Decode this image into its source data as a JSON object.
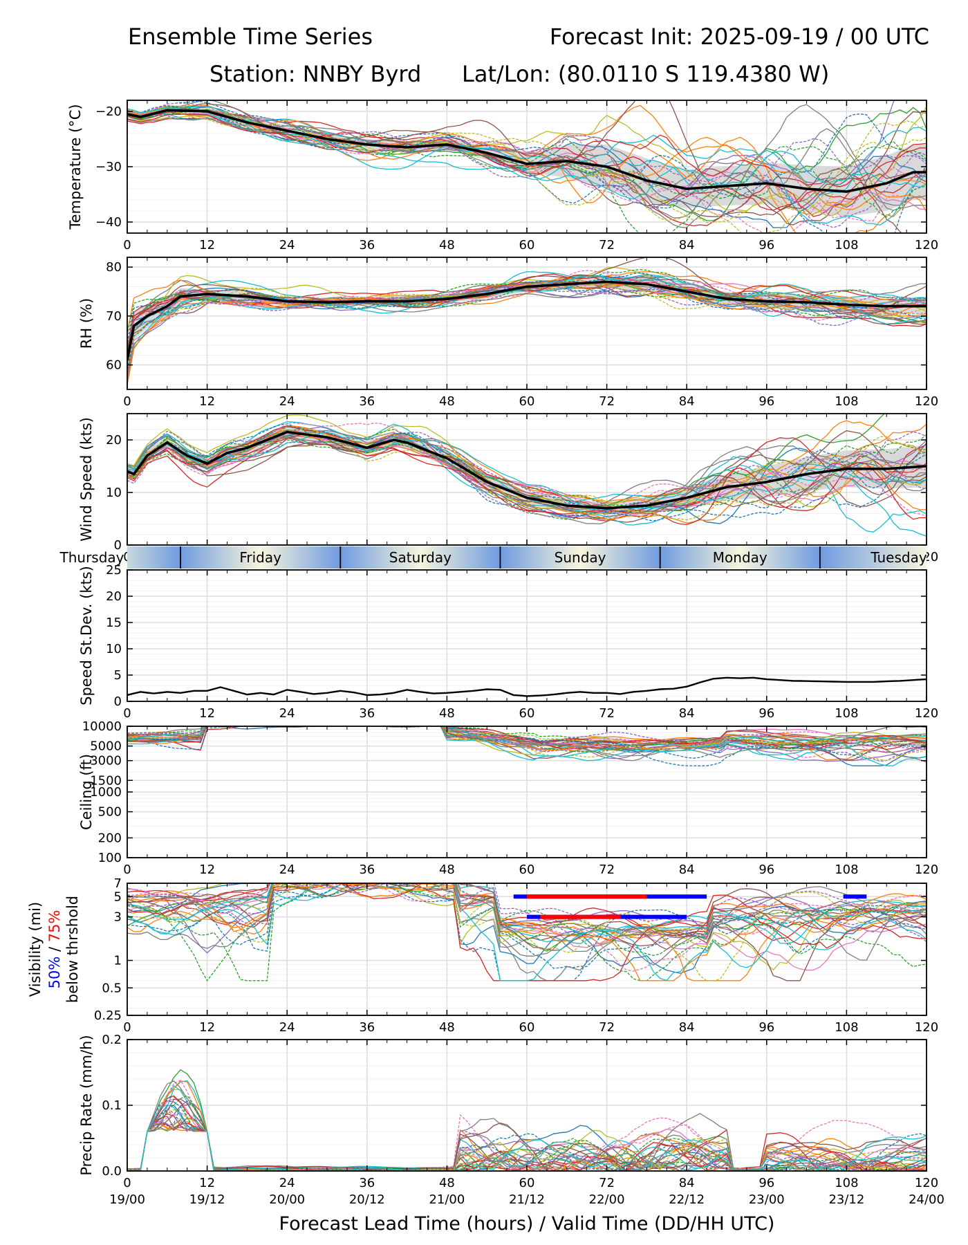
{
  "header": {
    "title_left": "Ensemble Time Series",
    "title_right": "Forecast Init: 2025-09-19 / 00 UTC",
    "station": "Station: NNBY Byrd",
    "latlon": "Lat/Lon: (80.0110 S 119.4380 W)"
  },
  "colors": {
    "ensemble": [
      "#1f77b4",
      "#ff7f0e",
      "#2ca02c",
      "#d62728",
      "#9467bd",
      "#8c564b",
      "#e377c2",
      "#7f7f7f",
      "#bcbd22",
      "#17becf"
    ],
    "mean": "#000000",
    "spread": "#d9d9d9",
    "vis_50": "#0000ff",
    "vis_75": "#ff0000",
    "day_band_blue": "#6f9be0",
    "day_band_cream": "#f7f5dc"
  },
  "chart_data": {
    "x_ticks": [
      0,
      12,
      24,
      36,
      48,
      60,
      72,
      84,
      96,
      108,
      120
    ],
    "xlim": [
      0,
      120
    ],
    "xlabel": "Forecast Lead Time (hours) / Valid Time (DD/HH UTC)",
    "valid_times": [
      "19/00",
      "19/12",
      "20/00",
      "20/12",
      "21/00",
      "21/12",
      "22/00",
      "22/12",
      "23/00",
      "23/12",
      "24/00"
    ],
    "day_bar": {
      "days": [
        "Thursday",
        "Friday",
        "Saturday",
        "Sunday",
        "Monday",
        "Tuesday"
      ],
      "boundaries": [
        8,
        32,
        56,
        80,
        104
      ]
    },
    "panels": [
      {
        "name": "temperature",
        "type": "line",
        "ylabel": "Temperature (°C)",
        "ylim": [
          -42,
          -18
        ],
        "yticks": [
          -40,
          -30,
          -20
        ],
        "ytick_labels": [
          "−40",
          "−30",
          "−20"
        ],
        "members": 30,
        "mean": {
          "x": [
            0,
            2,
            6,
            12,
            18,
            24,
            30,
            36,
            42,
            48,
            54,
            60,
            66,
            72,
            78,
            84,
            90,
            96,
            102,
            108,
            114,
            118,
            120
          ],
          "y": [
            -20.5,
            -21,
            -19.8,
            -20,
            -22,
            -23.5,
            -25,
            -26,
            -26.5,
            -26,
            -27.5,
            -29.5,
            -29,
            -30,
            -32.5,
            -34,
            -33.5,
            -33,
            -34,
            -34.5,
            -33,
            -31,
            -31
          ]
        },
        "spread": {
          "x": [
            0,
            12,
            24,
            36,
            48,
            60,
            66,
            72,
            78,
            84,
            90,
            96,
            102,
            108,
            114,
            120
          ],
          "hw": [
            0.7,
            0.7,
            1,
            1,
            1,
            1.5,
            3,
            4,
            4,
            3.5,
            3.5,
            3.8,
            4.2,
            4.5,
            5,
            5
          ]
        }
      },
      {
        "name": "rh",
        "type": "line",
        "ylabel": "RH (%)",
        "ylim": [
          55,
          82
        ],
        "yticks": [
          60,
          70,
          80
        ],
        "ytick_labels": [
          "60",
          "70",
          "80"
        ],
        "members": 30,
        "mean": {
          "x": [
            0,
            1,
            3,
            6,
            8,
            12,
            18,
            24,
            30,
            36,
            42,
            48,
            54,
            60,
            66,
            72,
            78,
            84,
            90,
            96,
            102,
            108,
            114,
            120
          ],
          "y": [
            61,
            68,
            70,
            72,
            74,
            74.5,
            74,
            73,
            72.8,
            73,
            73,
            73.5,
            74.5,
            76,
            76.5,
            77,
            76.5,
            75,
            73.5,
            73,
            72.8,
            72.3,
            72,
            72
          ]
        },
        "spread": {
          "x": [
            0,
            6,
            12,
            24,
            48,
            72,
            96,
            120
          ],
          "hw": [
            3,
            2,
            1,
            0.8,
            0.8,
            1.2,
            1.5,
            1.5
          ]
        }
      },
      {
        "name": "wind",
        "type": "line",
        "ylabel": "Wind Speed (kts)",
        "ylim": [
          0,
          25
        ],
        "yticks": [
          0,
          10,
          20
        ],
        "ytick_labels": [
          "0",
          "10",
          "20"
        ],
        "members": 30,
        "mean": {
          "x": [
            0,
            1,
            3,
            6,
            9,
            12,
            15,
            18,
            24,
            30,
            36,
            40,
            42,
            48,
            54,
            60,
            66,
            72,
            78,
            84,
            90,
            96,
            102,
            108,
            114,
            120
          ],
          "y": [
            14,
            13.5,
            17,
            19.5,
            17,
            15.5,
            17.5,
            18.5,
            21.5,
            20.5,
            18.5,
            20,
            19.5,
            16.5,
            12,
            9,
            7.5,
            7,
            7.5,
            9,
            11,
            12,
            13.5,
            14.5,
            14.5,
            15
          ]
        },
        "spread": {
          "x": [
            0,
            12,
            24,
            36,
            48,
            60,
            72,
            84,
            96,
            108,
            120
          ],
          "hw": [
            1,
            1.3,
            1.2,
            1.2,
            1.5,
            1.2,
            1.2,
            2,
            3,
            3.5,
            4
          ]
        }
      },
      {
        "name": "speed_stdev",
        "type": "line",
        "ylabel": "Speed St.Dev. (kts)",
        "ylim": [
          0,
          25
        ],
        "yticks": [
          0,
          5,
          10,
          15,
          20,
          25
        ],
        "ytick_labels": [
          "0",
          "5",
          "10",
          "15",
          "20",
          "25"
        ],
        "members": 0,
        "mean": {
          "x": [
            0,
            2,
            4,
            6,
            8,
            10,
            12,
            14,
            16,
            18,
            20,
            22,
            24,
            26,
            28,
            30,
            32,
            34,
            36,
            38,
            40,
            42,
            44,
            46,
            48,
            50,
            52,
            54,
            56,
            58,
            60,
            62,
            64,
            66,
            68,
            70,
            72,
            74,
            76,
            78,
            80,
            82,
            84,
            86,
            88,
            90,
            92,
            94,
            96,
            100,
            104,
            108,
            112,
            116,
            120
          ],
          "y": [
            1.2,
            1.8,
            1.5,
            1.8,
            1.6,
            2,
            2,
            2.7,
            2,
            1.3,
            1.6,
            1.3,
            2.2,
            1.8,
            1.4,
            1.6,
            2,
            1.7,
            1.2,
            1.3,
            1.6,
            2.2,
            1.8,
            1.5,
            1.6,
            1.8,
            2.0,
            2.3,
            2.2,
            1.2,
            1.0,
            1.1,
            1.3,
            1.6,
            1.8,
            1.6,
            1.6,
            1.4,
            1.8,
            2.0,
            2.3,
            2.4,
            2.8,
            3.6,
            4.3,
            4.5,
            4.4,
            4.5,
            4.2,
            3.9,
            3.8,
            3.7,
            3.7,
            3.9,
            4.2
          ]
        },
        "spread": null
      },
      {
        "name": "ceiling",
        "type": "line",
        "scale": "log",
        "ylabel": "Ceiling (ft)",
        "ylim": [
          100,
          10000
        ],
        "yticks": [
          100,
          200,
          500,
          1000,
          1500,
          3000,
          5000,
          10000
        ],
        "ytick_labels": [
          "100",
          "200",
          "500",
          "1000",
          "1500",
          "3000",
          "5000",
          "10000"
        ],
        "members": 30,
        "mean": null,
        "spread": null
      },
      {
        "name": "visibility",
        "type": "line",
        "scale": "log",
        "ylabel": "Visibility (mi)",
        "ylabel_50": "50%",
        "ylabel_sep": " / ",
        "ylabel_75": "75%",
        "ylabel_below": "below thrshold",
        "ylim": [
          0.25,
          7
        ],
        "yticks": [
          0.25,
          0.5,
          1,
          3,
          5,
          7
        ],
        "ytick_labels": [
          "0.25",
          "0.5",
          "1",
          "3",
          "5",
          "7"
        ],
        "members": 30,
        "mean": null,
        "spread": null,
        "threshold_bars": [
          {
            "label": "50%",
            "color": "#0000ff",
            "y": 5,
            "x0": 58,
            "x1": 87
          },
          {
            "label": "75%",
            "color": "#ff0000",
            "y": 5,
            "x0": 60,
            "x1": 78
          },
          {
            "label": "50%",
            "color": "#0000ff",
            "y": 3,
            "x0": 60,
            "x1": 84
          },
          {
            "label": "75%",
            "color": "#ff0000",
            "y": 3,
            "x0": 62,
            "x1": 74
          },
          {
            "label": "50%",
            "color": "#0000ff",
            "y": 5,
            "x0": 107.5,
            "x1": 111
          }
        ]
      },
      {
        "name": "precip",
        "type": "line",
        "ylabel": "Precip Rate (mm/h)",
        "ylim": [
          0,
          0.2
        ],
        "yticks": [
          0,
          0.1,
          0.2
        ],
        "ytick_labels": [
          "0.0",
          "0.1",
          "0.2"
        ],
        "members": 30,
        "mean": null,
        "spread": null
      }
    ]
  }
}
